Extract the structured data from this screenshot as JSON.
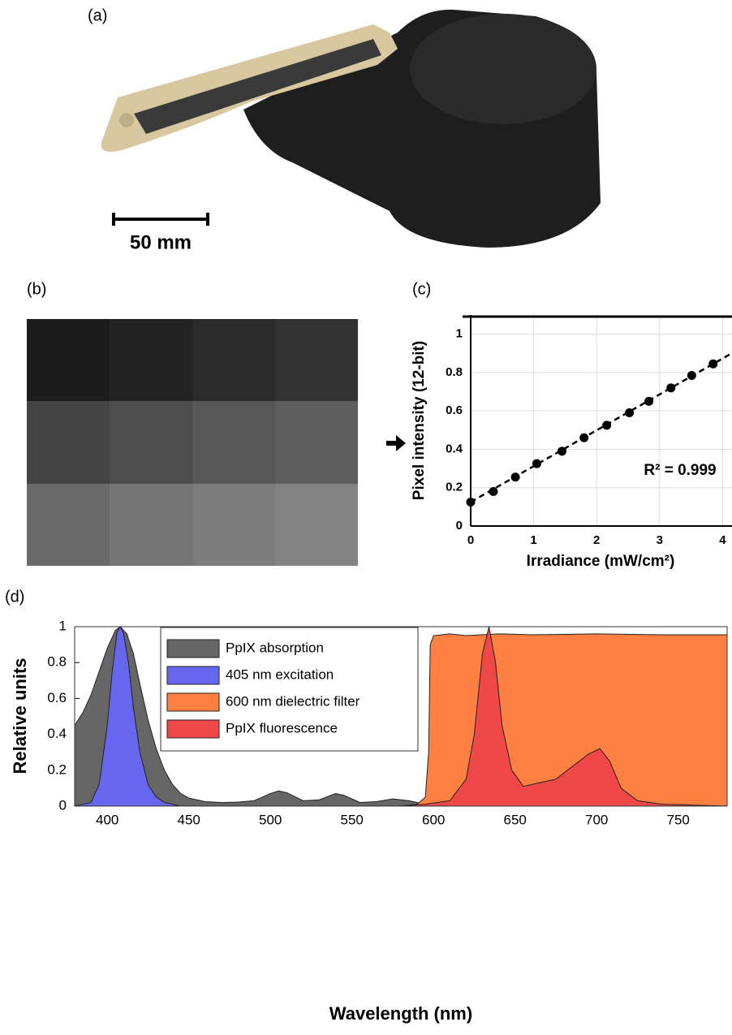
{
  "panels": {
    "a": {
      "label": "(a)",
      "scale_bar": "50 mm"
    },
    "b": {
      "label": "(b)"
    },
    "c": {
      "label": "(c)"
    },
    "d": {
      "label": "(d)"
    }
  },
  "chart_data": [
    {
      "type": "scatter",
      "x_label": "Irradiance (mW/cm²)",
      "y_label": "Pixel intensity (12-bit)",
      "annotation": "R² = 0.999",
      "series": [
        {
          "color": "#000000",
          "x": [
            0,
            0.36,
            0.71,
            1.05,
            1.45,
            1.8,
            2.16,
            2.52,
            2.83,
            3.18,
            3.51,
            3.85
          ],
          "values": [
            0.125,
            0.18,
            0.255,
            0.325,
            0.39,
            0.46,
            0.525,
            0.59,
            0.65,
            0.72,
            0.785,
            0.845
          ]
        }
      ],
      "fit": {
        "intercept": 0.125,
        "slope": 0.187
      },
      "xlim": [
        0,
        4.15
      ],
      "ylim": [
        0,
        1.1
      ],
      "xticks": [
        0,
        1,
        2,
        3,
        4
      ],
      "yticks": [
        0,
        0.2,
        0.4,
        0.6,
        0.8,
        1
      ],
      "grid": true
    },
    {
      "type": "area",
      "x_label": "Wavelength (nm)",
      "y_label": "Relative units",
      "legend": "upper-left",
      "series": [
        {
          "name": "PpIX absorption",
          "color": "#666666",
          "x": [
            380,
            385,
            390,
            395,
            400,
            405,
            408,
            412,
            416,
            420,
            425,
            430,
            435,
            440,
            445,
            450,
            460,
            470,
            480,
            490,
            500,
            505,
            510,
            520,
            530,
            540,
            545,
            555,
            565,
            575,
            585,
            595,
            600
          ],
          "values": [
            0.45,
            0.52,
            0.62,
            0.75,
            0.88,
            0.98,
            1.0,
            0.96,
            0.85,
            0.68,
            0.48,
            0.32,
            0.2,
            0.12,
            0.07,
            0.045,
            0.025,
            0.02,
            0.022,
            0.03,
            0.07,
            0.085,
            0.075,
            0.03,
            0.035,
            0.07,
            0.06,
            0.02,
            0.025,
            0.04,
            0.03,
            0.01,
            0
          ]
        },
        {
          "name": "405 nm excitation",
          "color": "#6666ee",
          "x": [
            380,
            390,
            395,
            400,
            403,
            406,
            408,
            410,
            413,
            416,
            420,
            425,
            430,
            435,
            445
          ],
          "values": [
            0,
            0.02,
            0.12,
            0.45,
            0.75,
            0.97,
            1.0,
            0.96,
            0.8,
            0.55,
            0.3,
            0.12,
            0.05,
            0.02,
            0
          ]
        },
        {
          "name": "600 nm dielectric filter",
          "color": "#ff8040",
          "x": [
            580,
            590,
            595,
            597,
            598,
            600,
            610,
            620,
            640,
            660,
            700,
            740,
            780
          ],
          "values": [
            0,
            0.01,
            0.05,
            0.3,
            0.9,
            0.95,
            0.96,
            0.95,
            0.96,
            0.955,
            0.96,
            0.955,
            0.955
          ]
        },
        {
          "name": "PpIX fluorescence",
          "color": "#f04848",
          "x": [
            580,
            595,
            610,
            620,
            625,
            630,
            634,
            638,
            642,
            648,
            655,
            665,
            675,
            685,
            695,
            702,
            708,
            715,
            725,
            740,
            780
          ],
          "values": [
            0,
            0.01,
            0.03,
            0.15,
            0.4,
            0.85,
            1.0,
            0.8,
            0.45,
            0.2,
            0.11,
            0.13,
            0.15,
            0.22,
            0.29,
            0.32,
            0.25,
            0.1,
            0.03,
            0.01,
            0
          ]
        }
      ],
      "xlim": [
        380,
        780
      ],
      "ylim": [
        0,
        1
      ],
      "xticks": [
        400,
        450,
        500,
        550,
        600,
        650,
        700,
        750
      ],
      "yticks": [
        0,
        0.2,
        0.4,
        0.6,
        0.8,
        1
      ]
    }
  ]
}
